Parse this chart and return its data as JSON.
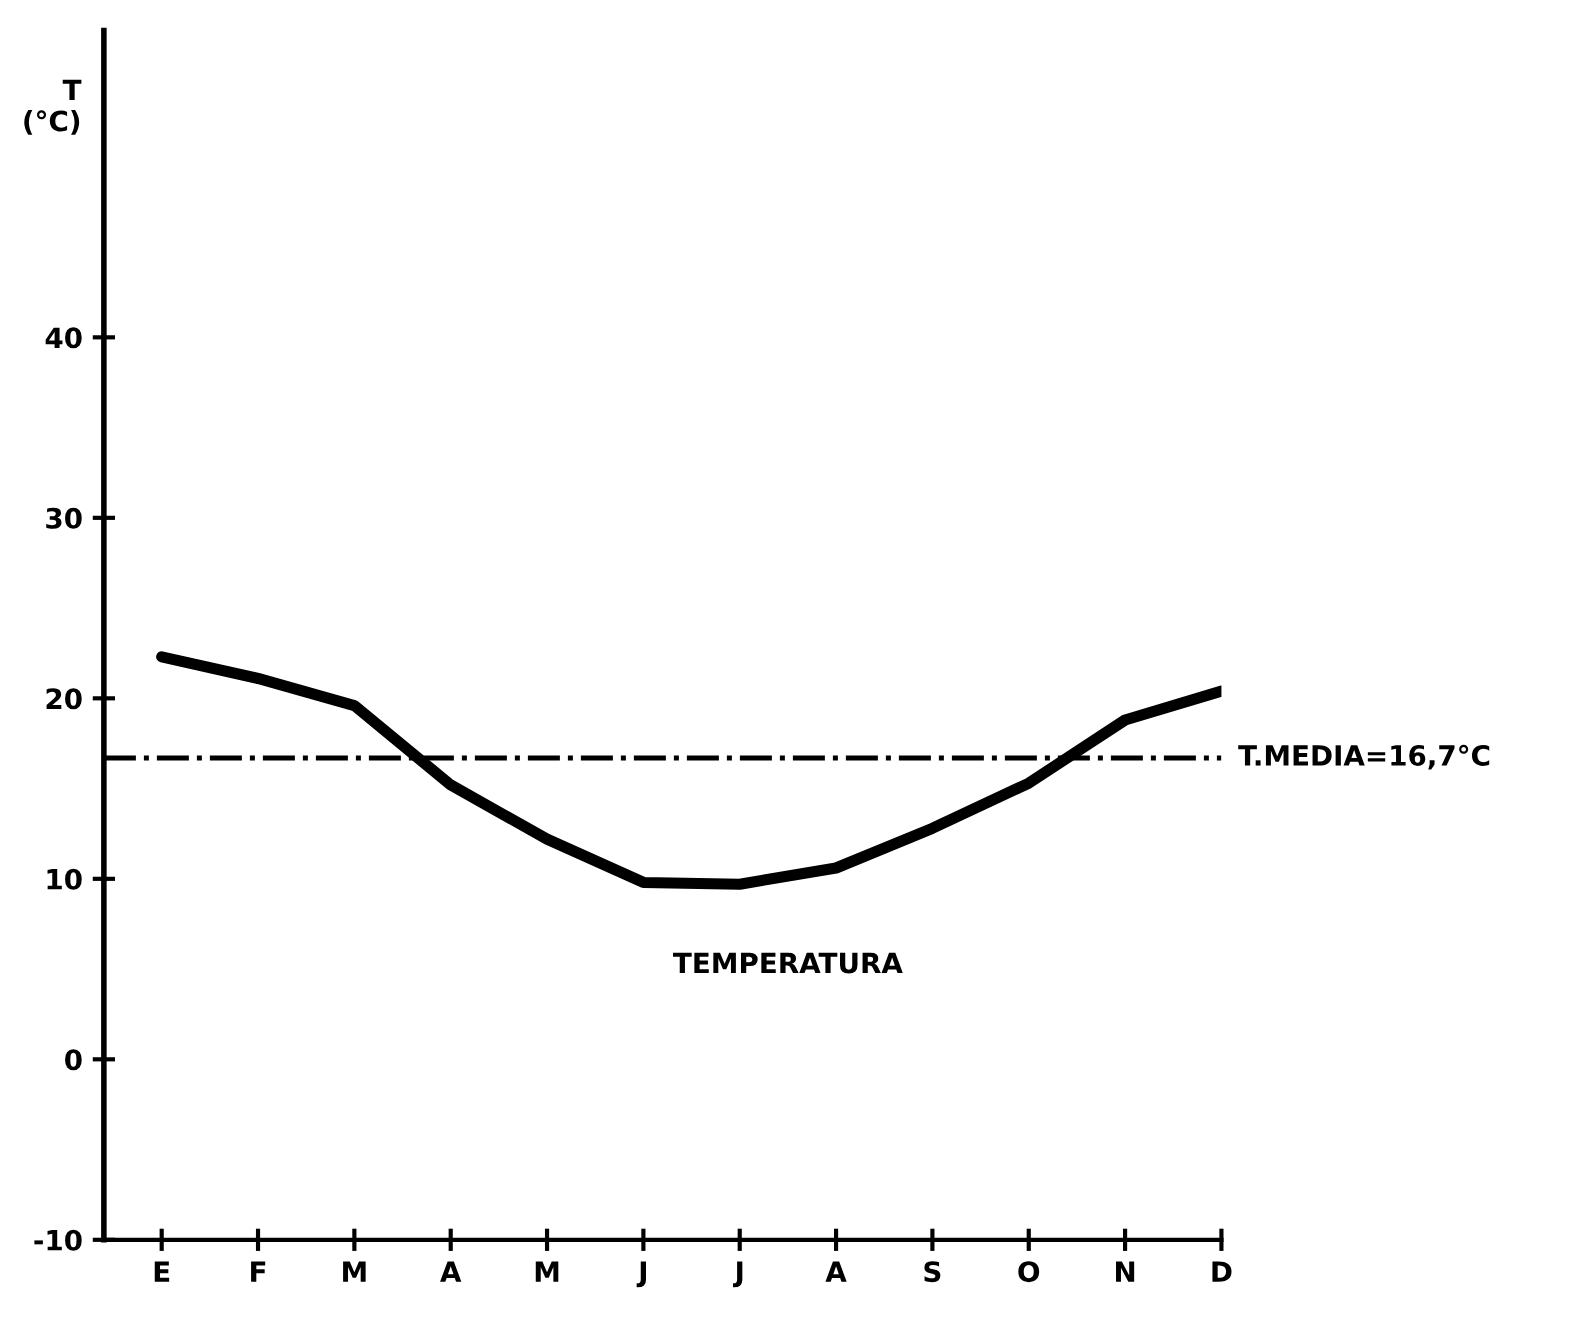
{
  "chart_data": {
    "type": "line",
    "ylabel": "T\n(°C)",
    "categories": [
      "E",
      "F",
      "M",
      "A",
      "M",
      "J",
      "J",
      "A",
      "S",
      "O",
      "N",
      "D"
    ],
    "series": [
      {
        "name": "TEMPERATURA",
        "color": "#000000",
        "values": [
          22.3,
          21.1,
          19.6,
          15.2,
          12.2,
          9.8,
          9.7,
          10.6,
          12.8,
          15.3,
          18.8,
          20.4
        ]
      }
    ],
    "ylim": [
      -10,
      57
    ],
    "yticks": [
      -10,
      0,
      10,
      20,
      30,
      40
    ],
    "ref_lines": [
      {
        "axis": "y",
        "value": 16.7,
        "label": "T.MEDIA=16,7°C",
        "color": "#000000",
        "line_style": "dash-dot"
      }
    ],
    "grid": false,
    "legend": false,
    "marker": "none",
    "line_style": "solid"
  }
}
